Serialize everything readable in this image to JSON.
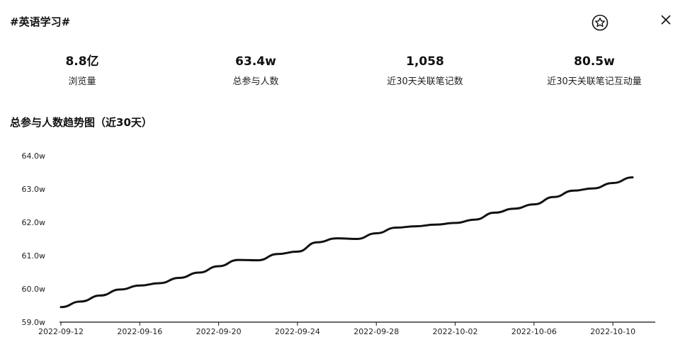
{
  "header": {
    "topic": "#英语学习#",
    "star_icon": "star-icon",
    "close_icon": "close-icon"
  },
  "stats": [
    {
      "value": "8.8亿",
      "label": "浏览量"
    },
    {
      "value": "63.4w",
      "label": "总参与人数"
    },
    {
      "value": "1,058",
      "label": "近30天关联笔记数"
    },
    {
      "value": "80.5w",
      "label": "近30天关联笔记互动量"
    }
  ],
  "chart_section": {
    "title": "总参与人数趋势图（近30天）"
  },
  "chart_data": {
    "type": "line",
    "title": "总参与人数趋势图（近30天）",
    "xlabel": "",
    "ylabel": "",
    "ylim": [
      59.0,
      64.0
    ],
    "y_unit_suffix": "w",
    "y_ticks": [
      "59.0w",
      "60.0w",
      "61.0w",
      "62.0w",
      "63.0w",
      "64.0w"
    ],
    "x_ticks": [
      "2022-09-12",
      "2022-09-16",
      "2022-09-20",
      "2022-09-24",
      "2022-09-28",
      "2022-10-02",
      "2022-10-06",
      "2022-10-10"
    ],
    "grid": false,
    "line_color": "#111111",
    "series": [
      {
        "x": [
          "2022-09-12",
          "2022-09-13",
          "2022-09-14",
          "2022-09-15",
          "2022-09-16",
          "2022-09-17",
          "2022-09-18",
          "2022-09-19",
          "2022-09-20",
          "2022-09-21",
          "2022-09-22",
          "2022-09-23",
          "2022-09-24",
          "2022-09-25",
          "2022-09-26",
          "2022-09-27",
          "2022-09-28",
          "2022-09-29",
          "2022-09-30",
          "2022-10-01",
          "2022-10-02",
          "2022-10-03",
          "2022-10-04",
          "2022-10-05",
          "2022-10-06",
          "2022-10-07",
          "2022-10-08",
          "2022-10-09",
          "2022-10-10",
          "2022-10-11"
        ],
        "values": [
          59.45,
          59.62,
          59.8,
          59.98,
          60.1,
          60.17,
          60.33,
          60.49,
          60.68,
          60.87,
          60.86,
          61.05,
          61.12,
          61.4,
          61.52,
          61.5,
          61.67,
          61.84,
          61.88,
          61.93,
          61.98,
          62.08,
          62.29,
          62.41,
          62.54,
          62.76,
          62.95,
          63.02,
          63.18,
          63.35
        ]
      }
    ]
  }
}
